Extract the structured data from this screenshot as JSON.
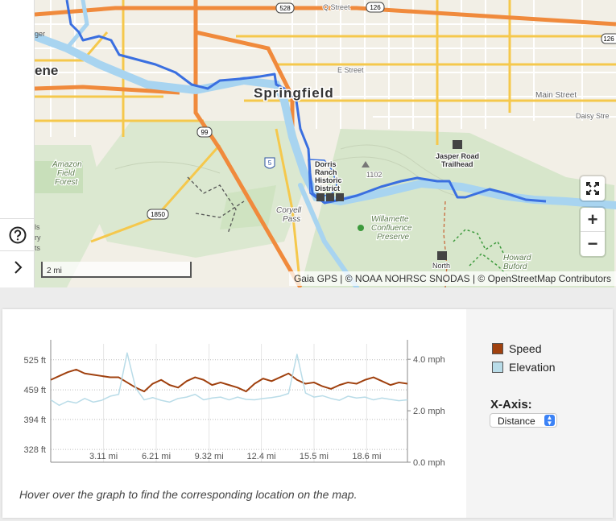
{
  "map": {
    "labels": {
      "city_main": "Springfield",
      "city_partial": "ene",
      "district": [
        "Dorris",
        "Ranch",
        "Historic",
        "District"
      ],
      "forest": [
        "Amazon",
        "Field",
        "Forest"
      ],
      "trailhead": [
        "Jasper Road",
        "Trailhead"
      ],
      "preserve": [
        "Willamette",
        "Confluence",
        "Preserve"
      ],
      "pass": [
        "Coryell",
        "Pass"
      ],
      "park": [
        "Howard",
        "Buford"
      ],
      "north": "North",
      "peak": "1102",
      "streets": {
        "q_street": "Q Street",
        "e_street": "E Street",
        "main_street": "Main Street",
        "daisy_street": "Daisy Stre"
      },
      "shields": {
        "r528": "528",
        "r126": "126",
        "r126b": "126",
        "i5": "5",
        "r99": "99",
        "r1850": "1850"
      },
      "edge_fragments": [
        "ger",
        "ls",
        "ry",
        "ts"
      ]
    },
    "scale_label": "2 mi",
    "attribution": "Gaia GPS | © NOAA NOHRSC SNODAS | © OpenStreetMap Contributors",
    "controls": {
      "expand_icon": "expand-icon",
      "zoom_in": "+",
      "zoom_out": "−"
    },
    "colors": {
      "route": "#3a6fe0",
      "water": "#a8d4f0",
      "highway": "#f08a3c",
      "arterial": "#f5c84c"
    }
  },
  "chart": {
    "legend": [
      {
        "name": "Speed",
        "color": "#a0410f"
      },
      {
        "name": "Elevation",
        "color": "#b9dce8"
      }
    ],
    "xaxis_label": "X-Axis:",
    "xaxis_selected": "Distance",
    "hint": "Hover over the graph to find the corresponding location on the map."
  },
  "chart_data": {
    "type": "line",
    "x_ticks": [
      "3.11 mi",
      "6.21 mi",
      "9.32 mi",
      "12.4 mi",
      "15.5 mi",
      "18.6 mi"
    ],
    "y_left_ticks": [
      "525 ft",
      "459 ft",
      "394 ft",
      "328 ft"
    ],
    "y_right_ticks": [
      "4.0 mph",
      "2.0 mph",
      "0.0 mph"
    ],
    "grid": true,
    "series": [
      {
        "name": "Speed",
        "axis": "right",
        "color": "#a0410f",
        "x": [
          0,
          0.5,
          1,
          1.5,
          2,
          2.5,
          3,
          3.5,
          4,
          4.5,
          5,
          5.5,
          6,
          6.5,
          7,
          7.5,
          8,
          8.5,
          9,
          9.5,
          10,
          10.5,
          11,
          11.5,
          12,
          12.5,
          13,
          13.5,
          14,
          14.5,
          15,
          15.5,
          16,
          16.5,
          17,
          17.5,
          18,
          18.5,
          19,
          19.5,
          20,
          20.5,
          21
        ],
        "values": [
          3.2,
          3.35,
          3.5,
          3.6,
          3.45,
          3.4,
          3.35,
          3.3,
          3.3,
          3.1,
          2.9,
          2.75,
          3.05,
          3.2,
          3.0,
          2.9,
          3.15,
          3.3,
          3.2,
          3.0,
          3.1,
          3.0,
          2.9,
          2.75,
          3.05,
          3.25,
          3.15,
          3.3,
          3.45,
          3.2,
          3.05,
          3.1,
          2.95,
          2.85,
          3.0,
          3.1,
          3.05,
          3.2,
          3.3,
          3.15,
          3.0,
          3.1,
          3.05
        ]
      },
      {
        "name": "Elevation",
        "axis": "left",
        "color": "#b9dce8",
        "x": [
          0,
          0.5,
          1,
          1.5,
          2,
          2.5,
          3,
          3.5,
          4,
          4.5,
          5,
          5.5,
          6,
          6.5,
          7,
          7.5,
          8,
          8.5,
          9,
          9.5,
          10,
          10.5,
          11,
          11.5,
          12,
          12.5,
          13,
          13.5,
          14,
          14.5,
          15,
          15.5,
          16,
          16.5,
          17,
          17.5,
          18,
          18.5,
          19,
          19.5,
          20,
          20.5,
          21
        ],
        "values": [
          437,
          425,
          434,
          430,
          440,
          432,
          436,
          445,
          449,
          540,
          463,
          437,
          442,
          436,
          432,
          440,
          443,
          449,
          437,
          441,
          443,
          437,
          443,
          438,
          437,
          440,
          442,
          445,
          451,
          537,
          452,
          443,
          446,
          440,
          436,
          445,
          441,
          443,
          437,
          441,
          438,
          435,
          437
        ]
      }
    ]
  }
}
